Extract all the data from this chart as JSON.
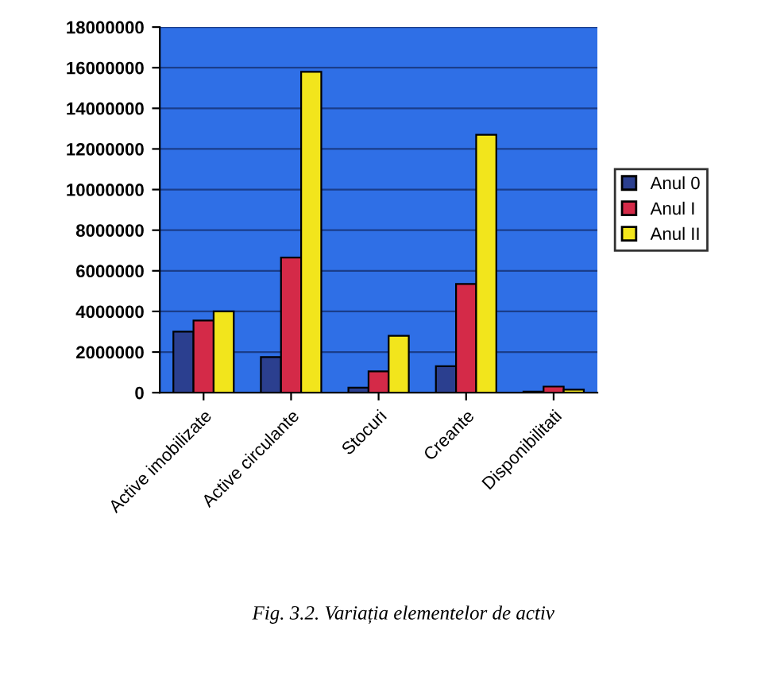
{
  "chart_data": {
    "type": "bar",
    "title": "Fig. 3.2. Variația elementelor de activ",
    "categories": [
      "Active imobilizate",
      "Active circulante",
      "Stocuri",
      "Creante",
      "Disponibilitati"
    ],
    "series": [
      {
        "name": "Anul 0",
        "color": "#2b3f8f",
        "values": [
          3000000,
          1750000,
          250000,
          1300000,
          50000
        ]
      },
      {
        "name": "Anul I",
        "color": "#d42a48",
        "values": [
          3550000,
          6650000,
          1050000,
          5350000,
          300000
        ]
      },
      {
        "name": "Anul II",
        "color": "#f2e51c",
        "values": [
          4000000,
          15800000,
          2800000,
          12700000,
          150000
        ]
      }
    ],
    "ylim": [
      0,
      18000000
    ],
    "yticks": [
      0,
      2000000,
      4000000,
      6000000,
      8000000,
      10000000,
      12000000,
      14000000,
      16000000,
      18000000
    ],
    "grid": "y",
    "legend": "right"
  }
}
